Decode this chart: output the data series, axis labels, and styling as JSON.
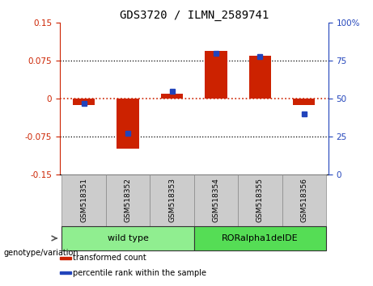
{
  "title": "GDS3720 / ILMN_2589741",
  "samples": [
    "GSM518351",
    "GSM518352",
    "GSM518353",
    "GSM518354",
    "GSM518355",
    "GSM518356"
  ],
  "transformed_counts": [
    -0.012,
    -0.098,
    0.01,
    0.095,
    0.085,
    -0.013
  ],
  "percentile_ranks": [
    47,
    27,
    55,
    80,
    78,
    40
  ],
  "groups": [
    {
      "label": "wild type",
      "indices": [
        0,
        1,
        2
      ],
      "color": "#90ee90"
    },
    {
      "label": "RORalpha1delDE",
      "indices": [
        3,
        4,
        5
      ],
      "color": "#55dd55"
    }
  ],
  "ylim_left": [
    -0.15,
    0.15
  ],
  "ylim_right": [
    0,
    100
  ],
  "yticks_left": [
    -0.15,
    -0.075,
    0,
    0.075,
    0.15
  ],
  "yticks_right": [
    0,
    25,
    50,
    75,
    100
  ],
  "hlines_dotted": [
    0.075,
    -0.075
  ],
  "bar_color": "#cc2200",
  "dot_color": "#2244bb",
  "zero_line_color": "#cc2200",
  "legend_items": [
    {
      "label": "transformed count",
      "color": "#cc2200"
    },
    {
      "label": "percentile rank within the sample",
      "color": "#2244bb"
    }
  ],
  "genotype_label": "genotype/variation",
  "sample_box_color": "#cccccc",
  "bar_width": 0.5
}
